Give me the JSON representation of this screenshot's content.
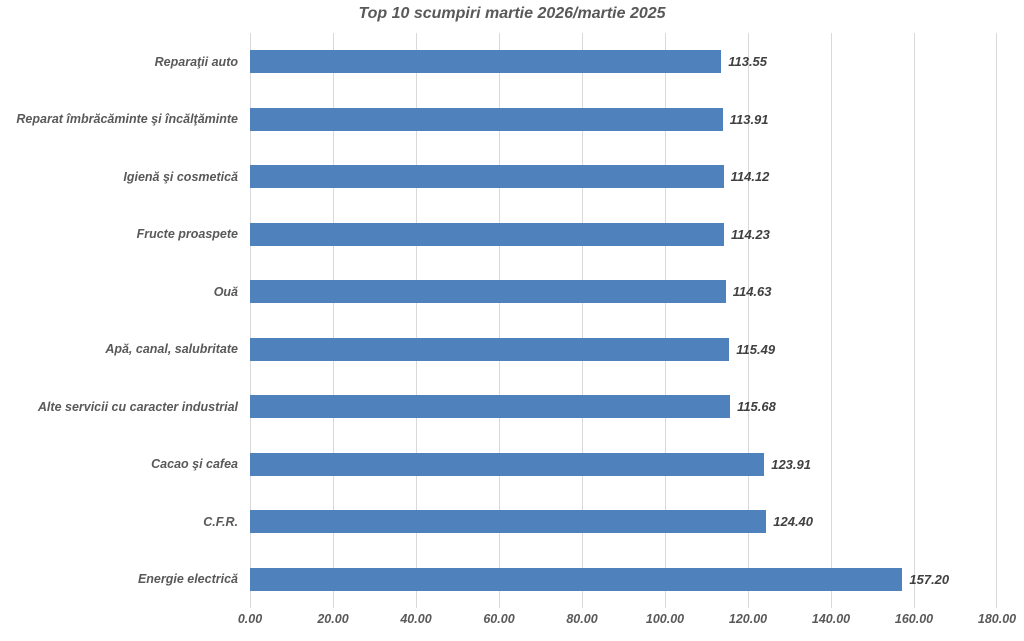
{
  "chart_data": {
    "type": "bar",
    "orientation": "horizontal",
    "title": "Top 10 scumpiri martie 2026/martie 2025",
    "categories": [
      "Reparaţii auto",
      "Reparat îmbrăcăminte şi încălţăminte",
      "Igienă şi cosmetică",
      "Fructe proaspete",
      "Ouă",
      "Apă, canal, salubritate",
      "Alte servicii cu caracter industrial",
      "Cacao şi cafea",
      "C.F.R.",
      "Energie electrică"
    ],
    "values": [
      113.55,
      113.91,
      114.12,
      114.23,
      114.63,
      115.49,
      115.68,
      123.91,
      124.4,
      157.2
    ],
    "value_labels": [
      "113.55",
      "113.91",
      "114.12",
      "114.23",
      "114.63",
      "115.49",
      "115.68",
      "123.91",
      "124.40",
      "157.20"
    ],
    "xlabel": "",
    "ylabel": "",
    "xlim": [
      0,
      180
    ],
    "ticks": [
      {
        "label": "0.00",
        "value": 0
      },
      {
        "label": "20.00",
        "value": 20
      },
      {
        "label": "40.00",
        "value": 40
      },
      {
        "label": "60.00",
        "value": 60
      },
      {
        "label": "80.00",
        "value": 80
      },
      {
        "label": "100.00",
        "value": 100
      },
      {
        "label": "120.00",
        "value": 120
      },
      {
        "label": "140.00",
        "value": 140
      },
      {
        "label": "160.00",
        "value": 160
      },
      {
        "label": "180.00",
        "value": 180
      }
    ],
    "grid": "vertical",
    "legend": "none",
    "colors": {
      "bar": "#4f81bd",
      "gridline": "#d9d9d9",
      "title": "#595959",
      "category_label": "#595959",
      "value_label": "#404040",
      "tick_label": "#595959",
      "background": "#ffffff"
    }
  }
}
